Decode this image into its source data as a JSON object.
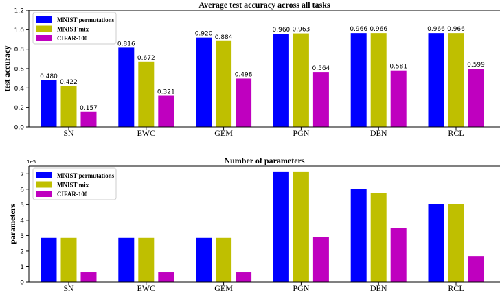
{
  "chart_data": [
    {
      "type": "bar",
      "title": "Average test accuracy across all tasks",
      "xlabel": "",
      "ylabel": "test accuracy",
      "ylim": [
        0,
        1.2
      ],
      "yticks": [
        "0.0",
        "0.2",
        "0.4",
        "0.6",
        "0.8",
        "1.0",
        "1.2"
      ],
      "categories": [
        "SN",
        "EWC",
        "GEM",
        "PGN",
        "DEN",
        "RCL"
      ],
      "legend_position": "top-left",
      "grid": false,
      "show_value_labels": true,
      "series": [
        {
          "name": "MNIST permutations",
          "color": "#0000ff",
          "values": [
            0.48,
            0.816,
            0.92,
            0.96,
            0.966,
            0.966
          ],
          "labels": [
            "0.480",
            "0.816",
            "0.920",
            "0.960",
            "0.966",
            "0.966"
          ]
        },
        {
          "name": "MNIST mix",
          "color": "#bfbf00",
          "values": [
            0.422,
            0.672,
            0.884,
            0.963,
            0.966,
            0.966
          ],
          "labels": [
            "0.422",
            "0.672",
            "0.884",
            "0.963",
            "0.966",
            "0.966"
          ]
        },
        {
          "name": "CIFAR-100",
          "color": "#bf00bf",
          "values": [
            0.157,
            0.321,
            0.498,
            0.564,
            0.581,
            0.599
          ],
          "labels": [
            "0.157",
            "0.321",
            "0.498",
            "0.564",
            "0.581",
            "0.599"
          ]
        }
      ]
    },
    {
      "type": "bar",
      "title": "Number of parameters",
      "xlabel": "",
      "ylabel": "parameters",
      "ylim": [
        0,
        7.5
      ],
      "yticks": [
        "0",
        "1",
        "2",
        "3",
        "4",
        "5",
        "6",
        "7"
      ],
      "y_multiplier_label": "1e5",
      "categories": [
        "SN",
        "EWC",
        "GEM",
        "PGN",
        "DEN",
        "RCL"
      ],
      "legend_position": "top-left",
      "grid": false,
      "show_value_labels": false,
      "series": [
        {
          "name": "MNIST permutations",
          "color": "#0000ff",
          "values": [
            2.85,
            2.85,
            2.85,
            7.15,
            6.0,
            5.05
          ]
        },
        {
          "name": "MNIST mix",
          "color": "#bfbf00",
          "values": [
            2.85,
            2.85,
            2.85,
            7.15,
            5.75,
            5.05
          ]
        },
        {
          "name": "CIFAR-100",
          "color": "#bf00bf",
          "values": [
            0.62,
            0.62,
            0.62,
            2.9,
            3.5,
            1.68
          ]
        }
      ]
    }
  ]
}
